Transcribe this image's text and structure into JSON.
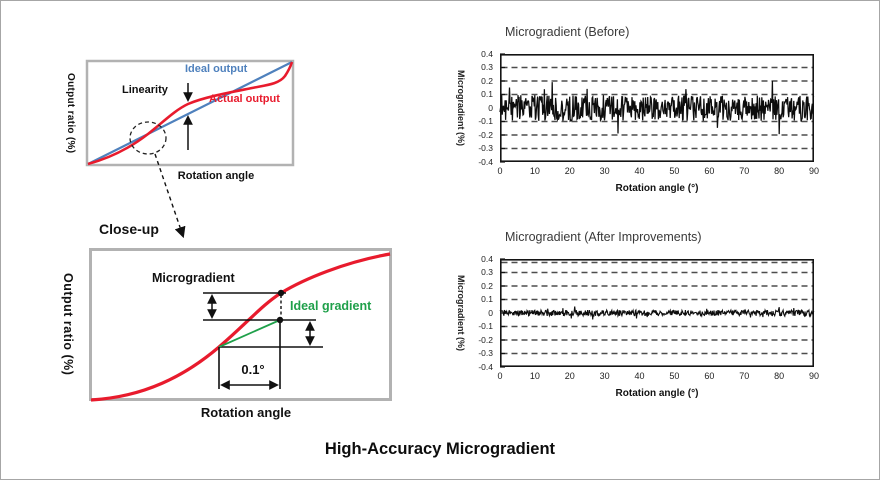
{
  "figure": {
    "caption": "High-Accuracy Microgradient"
  },
  "chart_data": [
    {
      "id": "output-linearity-diagram",
      "type": "line",
      "xlabel": "Rotation angle",
      "ylabel": "Output ratio (%)",
      "axes_numeric": false,
      "series": [
        {
          "name": "Ideal output",
          "color": "#4f81bd",
          "shape": "straight line from lower-left to upper-right"
        },
        {
          "name": "Actual output",
          "color": "#e81b2d",
          "shape": "s-curve crossing the ideal line"
        }
      ],
      "annotations": [
        {
          "text": "Linearity",
          "meaning": "vertical gap between actual and ideal output"
        }
      ]
    },
    {
      "id": "closeup-microgradient-diagram",
      "type": "line",
      "heading": "Close-up",
      "xlabel": "Rotation angle",
      "ylabel": "Output ratio (%)",
      "axes_numeric": false,
      "series": [
        {
          "name": "Actual output (close-up)",
          "color": "#e81b2d",
          "shape": "s-curve"
        },
        {
          "name": "Ideal gradient",
          "color": "#1fa04a",
          "shape": "straight chord over 0.1° step"
        }
      ],
      "annotations": [
        {
          "text": "Microgradient"
        },
        {
          "text": "Ideal gradient"
        },
        {
          "text": "0.1°",
          "meaning": "rotation-angle step over which the gradient is measured"
        }
      ]
    },
    {
      "id": "before",
      "type": "line",
      "title": "Microgradient (Before)",
      "xlabel": "Rotation angle (°)",
      "ylabel": "Microgradient (%)",
      "xlim": [
        0,
        90
      ],
      "ylim": [
        -0.4,
        0.4
      ],
      "xticks": [
        0,
        10,
        20,
        30,
        40,
        50,
        60,
        70,
        80,
        90
      ],
      "xtick_labels": [
        "0",
        "10",
        "20",
        "30",
        "40",
        "50",
        "60",
        "70",
        "80",
        "90"
      ],
      "yticks": [
        0.4,
        0.3,
        0.2,
        0.1,
        0,
        -0.1,
        -0.2,
        -0.3,
        -0.4
      ],
      "ytick_labels": [
        "0.4",
        "0.3",
        "0.2",
        "0.1",
        "0",
        "-0.1",
        "-0.2",
        "-0.3",
        "-0.4"
      ],
      "grid_dashed_at": [
        0.3,
        0.2,
        0.1,
        -0.1,
        -0.2,
        -0.3
      ],
      "line_color": "#0d0d0d",
      "noise": {
        "seed": 20240107,
        "points": 560,
        "base_amplitude": 0.095,
        "spike_probability": 0.06,
        "spike_gain": 1.9,
        "clamp": 0.2,
        "stroke_width": 1.25
      }
    },
    {
      "id": "after",
      "type": "line",
      "title": "Microgradient (After Improvements)",
      "xlabel": "Rotation angle (°)",
      "ylabel": "Microgradient (%)",
      "xlim": [
        0,
        90
      ],
      "ylim": [
        -0.4,
        0.4
      ],
      "xticks": [
        0,
        10,
        20,
        30,
        40,
        50,
        60,
        70,
        80,
        90
      ],
      "xtick_labels": [
        "0",
        "10",
        "20",
        "30",
        "40",
        "50",
        "60",
        "70",
        "80",
        "90"
      ],
      "yticks": [
        0.4,
        0.3,
        0.2,
        0.1,
        0,
        -0.1,
        -0.2,
        -0.3,
        -0.4
      ],
      "ytick_labels": [
        "0.4",
        "0.3",
        "0.2",
        "0.1",
        "0",
        "-0.1",
        "-0.2",
        "-0.3",
        "-0.4"
      ],
      "grid_dashed_at": [
        0.4,
        0.3,
        0.2,
        0.1,
        -0.1,
        -0.2,
        -0.3
      ],
      "line_color": "#0d0d0d",
      "noise": {
        "seed": 990213,
        "points": 560,
        "base_amplitude": 0.022,
        "spike_probability": 0.05,
        "spike_gain": 2.2,
        "clamp": 0.09,
        "stroke_width": 1.1
      }
    }
  ]
}
